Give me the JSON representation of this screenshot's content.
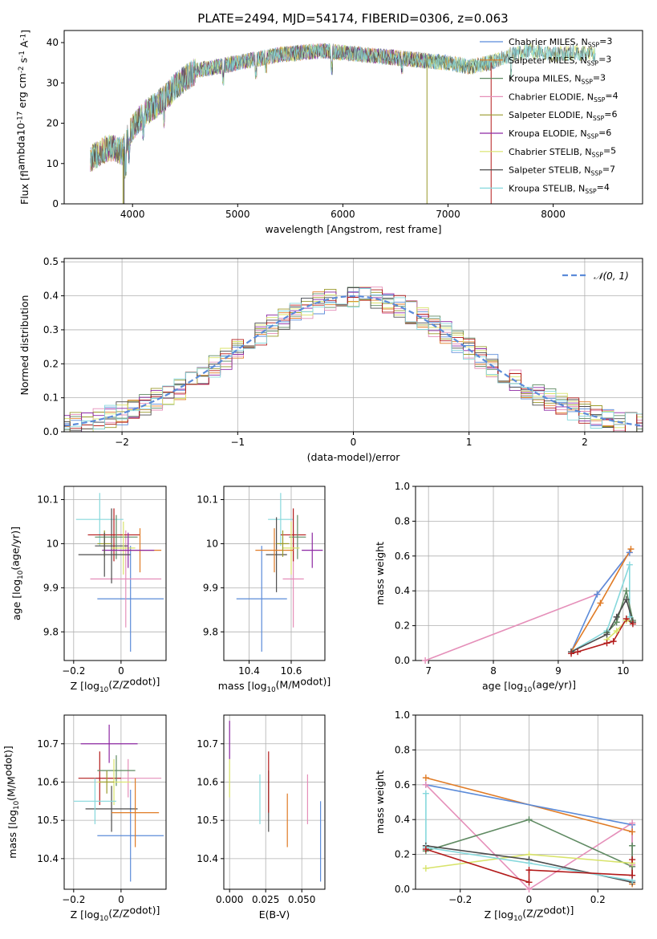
{
  "title": "PLATE=2494, MJD=54174, FIBERID=0306, z=0.063",
  "colors": {
    "blue": "#5b8bd9",
    "orange": "#e07b25",
    "green": "#5f8a62",
    "pink": "#e58fb9",
    "olive": "#9a9a2b",
    "purple": "#8d27a3",
    "yellow": "#d8e36a",
    "dark": "#4d4d4d",
    "red": "#b31b1b",
    "cyan": "#86d8dc"
  },
  "chart_data": [
    {
      "id": "spectrum",
      "type": "line",
      "xlabel": "wavelength [Angstrom, rest frame]",
      "ylabel": "Flux [f$_\\lambda$10$^{-17}$ erg cm$^{-2}$ s$^{-1}$ A$^{-1}$]",
      "xlim": [
        3350,
        8850
      ],
      "ylim": [
        0,
        43
      ],
      "xticks": [
        4000,
        5000,
        6000,
        7000,
        8000
      ],
      "yticks": [
        0,
        10,
        20,
        30,
        40
      ],
      "grid": false,
      "legend_position": "right",
      "continuum": {
        "x": [
          3600,
          3700,
          3800,
          3900,
          4000,
          4100,
          4200,
          4300,
          4400,
          4500,
          4600,
          4800,
          5000,
          5200,
          5400,
          5600,
          5800,
          6000,
          6200,
          6400,
          6600,
          6800,
          7000,
          7200,
          7400,
          7600,
          7800,
          8000,
          8200,
          8400
        ],
        "y": [
          11,
          13,
          14,
          13,
          19,
          22,
          24,
          26,
          29,
          31,
          33,
          34,
          35,
          36,
          37,
          37.5,
          38,
          37.5,
          37,
          36.5,
          36,
          35.5,
          35,
          34,
          35,
          37,
          38,
          37,
          37.5,
          37
        ]
      },
      "series": [
        {
          "name": "Chabrier MILES, N$_{SSP}$=3",
          "color": "blue",
          "xmax": 7450
        },
        {
          "name": "Salpeter MILES, N$_{SSP}$=3",
          "color": "orange",
          "xmax": 7450
        },
        {
          "name": "Kroupa MILES, N$_{SSP}$=3",
          "color": "green",
          "xmax": 7450
        },
        {
          "name": "Chabrier ELODIE, N$_{SSP}$=4",
          "color": "pink",
          "xmax": 6800
        },
        {
          "name": "Salpeter ELODIE, N$_{SSP}$=6",
          "color": "olive",
          "xmax": 6800
        },
        {
          "name": "Kroupa ELODIE, N$_{SSP}$=6",
          "color": "purple",
          "xmax": 6800
        },
        {
          "name": "Chabrier STELIB, N$_{SSP}$=5",
          "color": "yellow",
          "xmax": 8400
        },
        {
          "name": "Salpeter STELIB, N$_{SSP}$=7",
          "color": "dark",
          "xmax": 8400
        },
        {
          "name": "Kroupa STELIB, N$_{SSP}$=4",
          "color": "cyan",
          "xmax": 8400
        }
      ]
    },
    {
      "id": "residuals",
      "type": "line",
      "xlabel": "(data-model)/error",
      "ylabel": "Normed distribution",
      "xlim": [
        -2.5,
        2.5
      ],
      "ylim": [
        0,
        0.51
      ],
      "xticks": [
        -2,
        -1,
        0,
        1,
        2
      ],
      "yticks": [
        0.0,
        0.1,
        0.2,
        0.3,
        0.4,
        0.5
      ],
      "grid": true,
      "legend_position": "top-right",
      "legend_label": "$\\mathcal{N}(0,1)$",
      "bin_width": 0.1,
      "series": [
        {
          "color": "blue",
          "noise": 1
        },
        {
          "color": "orange",
          "noise": 2
        },
        {
          "color": "green",
          "noise": 3
        },
        {
          "color": "pink",
          "noise": 4
        },
        {
          "color": "olive",
          "noise": 5
        },
        {
          "color": "purple",
          "noise": 6
        },
        {
          "color": "yellow",
          "noise": 7
        },
        {
          "color": "dark",
          "noise": 8
        },
        {
          "color": "red",
          "noise": 9
        },
        {
          "color": "cyan",
          "noise": 10
        }
      ]
    },
    {
      "id": "age-vs-Z",
      "type": "scatter",
      "xlabel": "Z [log$_{10}$(Z/Z$_\\odot$)]",
      "ylabel": "age  [log$_{10}$(age/yr)]",
      "xlim": [
        -0.24,
        0.19
      ],
      "ylim": [
        9.735,
        10.13
      ],
      "xticks": [
        -0.2,
        0.0
      ],
      "yticks": [
        9.8,
        9.9,
        10.0,
        10.1
      ],
      "grid": true,
      "points": [
        {
          "color": "cyan",
          "x": -0.09,
          "xerr": 0.1,
          "y": 10.055,
          "yerr": 0.06
        },
        {
          "color": "blue",
          "x": 0.04,
          "xerr": 0.14,
          "y": 9.875,
          "yerr": 0.12
        },
        {
          "color": "pink",
          "x": 0.02,
          "xerr": 0.15,
          "y": 9.92,
          "yerr": 0.11
        },
        {
          "color": "dark",
          "x": -0.04,
          "xerr": 0.07,
          "y": 9.995,
          "yerr": 0.085
        },
        {
          "color": "red",
          "x": -0.03,
          "xerr": 0.11,
          "y": 10.02,
          "yerr": 0.06
        },
        {
          "color": "green",
          "x": -0.02,
          "xerr": 0.09,
          "y": 10.015,
          "yerr": 0.05
        },
        {
          "color": "yellow",
          "x": 0.01,
          "xerr": 0.05,
          "y": 9.99,
          "yerr": 0.06
        },
        {
          "color": "orange",
          "x": 0.08,
          "xerr": 0.09,
          "y": 9.985,
          "yerr": 0.05
        },
        {
          "color": "purple",
          "x": 0.03,
          "xerr": 0.11,
          "y": 9.985,
          "yerr": 0.04
        },
        {
          "color": "olive",
          "x": -0.07,
          "xerr": 0.03,
          "y": 10.0,
          "yerr": 0.03
        },
        {
          "color": "dark",
          "x": -0.07,
          "xerr": 0.11,
          "y": 9.975,
          "yerr": 0.05
        }
      ]
    },
    {
      "id": "age-vs-mass",
      "type": "scatter",
      "xlabel": "mass [log$_{10}$(M/M$_\\odot$)]",
      "ylabel": "",
      "xlim": [
        10.28,
        10.76
      ],
      "ylim": [
        9.735,
        10.13
      ],
      "xticks": [
        10.4,
        10.6
      ],
      "yticks": [
        9.8,
        9.9,
        10.0,
        10.1
      ],
      "grid": true,
      "points": [
        {
          "color": "cyan",
          "x": 10.55,
          "xerr": 0.06,
          "y": 10.055,
          "yerr": 0.06
        },
        {
          "color": "blue",
          "x": 10.46,
          "xerr": 0.12,
          "y": 9.875,
          "yerr": 0.12
        },
        {
          "color": "pink",
          "x": 10.61,
          "xerr": 0.05,
          "y": 9.92,
          "yerr": 0.11
        },
        {
          "color": "dark",
          "x": 10.53,
          "xerr": 0.05,
          "y": 9.975,
          "yerr": 0.085
        },
        {
          "color": "red",
          "x": 10.61,
          "xerr": 0.06,
          "y": 10.02,
          "yerr": 0.06
        },
        {
          "color": "green",
          "x": 10.63,
          "xerr": 0.04,
          "y": 10.015,
          "yerr": 0.05
        },
        {
          "color": "yellow",
          "x": 10.6,
          "xerr": 0.04,
          "y": 9.99,
          "yerr": 0.06
        },
        {
          "color": "orange",
          "x": 10.52,
          "xerr": 0.09,
          "y": 9.985,
          "yerr": 0.05
        },
        {
          "color": "purple",
          "x": 10.7,
          "xerr": 0.05,
          "y": 9.985,
          "yerr": 0.04
        },
        {
          "color": "olive",
          "x": 10.56,
          "xerr": 0.03,
          "y": 10.0,
          "yerr": 0.03
        }
      ]
    },
    {
      "id": "weight-vs-age",
      "type": "line",
      "xlabel": "age  [log$_{10}$(age/yr)]",
      "ylabel": "mass weight",
      "xlim": [
        6.8,
        10.3
      ],
      "ylim": [
        0,
        1.0
      ],
      "xticks": [
        7,
        8,
        9,
        10
      ],
      "yticks": [
        0.0,
        0.2,
        0.4,
        0.6,
        0.8,
        1.0
      ],
      "grid": true,
      "series": [
        {
          "color": "pink",
          "x": [
            6.95,
            9.6,
            10.1
          ],
          "y": [
            0.0,
            0.38,
            0.62
          ]
        },
        {
          "color": "blue",
          "x": [
            9.2,
            9.6,
            10.1
          ],
          "y": [
            0.05,
            0.38,
            0.62
          ]
        },
        {
          "color": "orange",
          "x": [
            9.2,
            9.65,
            10.12
          ],
          "y": [
            0.05,
            0.33,
            0.64
          ]
        },
        {
          "color": "cyan",
          "x": [
            9.2,
            9.75,
            10.1,
            10.1
          ],
          "y": [
            0.05,
            0.17,
            0.55,
            0.25
          ]
        },
        {
          "color": "yellow",
          "x": [
            9.75,
            9.9,
            10.05,
            10.15
          ],
          "y": [
            0.12,
            0.17,
            0.23,
            0.22
          ]
        },
        {
          "color": "green",
          "x": [
            9.75,
            9.9,
            10.05,
            10.15
          ],
          "y": [
            0.16,
            0.22,
            0.4,
            0.23
          ]
        },
        {
          "color": "dark",
          "x": [
            9.2,
            9.75,
            9.9,
            10.05,
            10.15
          ],
          "y": [
            0.05,
            0.15,
            0.25,
            0.35,
            0.22
          ]
        },
        {
          "color": "red",
          "x": [
            9.2,
            9.3,
            9.75,
            9.85,
            10.05,
            10.15
          ],
          "y": [
            0.04,
            0.05,
            0.1,
            0.11,
            0.24,
            0.21
          ]
        }
      ]
    },
    {
      "id": "mass-vs-Z",
      "type": "scatter",
      "xlabel": "Z [log$_{10}$(Z/Z$_\\odot$)]",
      "ylabel": "mass [log$_{10}$(M/M$_\\odot$)]",
      "xlim": [
        -0.24,
        0.19
      ],
      "ylim": [
        10.32,
        10.775
      ],
      "xticks": [
        -0.2,
        0.0
      ],
      "yticks": [
        10.4,
        10.5,
        10.6,
        10.7
      ],
      "grid": true,
      "points": [
        {
          "color": "purple",
          "x": -0.05,
          "xerr": 0.12,
          "y": 10.7,
          "yerr": 0.05
        },
        {
          "color": "blue",
          "x": 0.04,
          "xerr": 0.14,
          "y": 10.46,
          "yerr": 0.12
        },
        {
          "color": "pink",
          "x": 0.03,
          "xerr": 0.14,
          "y": 10.61,
          "yerr": 0.05
        },
        {
          "color": "dark",
          "x": -0.04,
          "xerr": 0.11,
          "y": 10.53,
          "yerr": 0.06
        },
        {
          "color": "red",
          "x": -0.09,
          "xerr": 0.09,
          "y": 10.61,
          "yerr": 0.07
        },
        {
          "color": "green",
          "x": -0.02,
          "xerr": 0.08,
          "y": 10.63,
          "yerr": 0.04
        },
        {
          "color": "yellow",
          "x": -0.03,
          "xerr": 0.07,
          "y": 10.6,
          "yerr": 0.06
        },
        {
          "color": "orange",
          "x": 0.06,
          "xerr": 0.1,
          "y": 10.52,
          "yerr": 0.09
        },
        {
          "color": "cyan",
          "x": -0.11,
          "xerr": 0.09,
          "y": 10.55,
          "yerr": 0.06
        },
        {
          "color": "olive",
          "x": -0.06,
          "xerr": 0.03,
          "y": 10.6,
          "yerr": 0.03
        }
      ]
    },
    {
      "id": "mass-vs-EBV",
      "type": "scatter",
      "xlabel": "E(B-V)",
      "ylabel": "",
      "xlim": [
        -0.004,
        0.066
      ],
      "ylim": [
        10.32,
        10.775
      ],
      "xticks": [
        0.0,
        0.025,
        0.05
      ],
      "xticklabels": [
        "0.000",
        "0.025",
        "0.050"
      ],
      "yticks": [
        10.4,
        10.5,
        10.6,
        10.7
      ],
      "grid": true,
      "points": [
        {
          "color": "purple",
          "x": 0.0,
          "y": 10.71,
          "yerr": 0.05
        },
        {
          "color": "yellow",
          "x": 0.0,
          "y": 10.61,
          "yerr": 0.05
        },
        {
          "color": "cyan",
          "x": 0.021,
          "y": 10.555,
          "yerr": 0.065
        },
        {
          "color": "dark",
          "x": 0.027,
          "y": 10.55,
          "yerr": 0.08
        },
        {
          "color": "red",
          "x": 0.027,
          "y": 10.6,
          "yerr": 0.08
        },
        {
          "color": "orange",
          "x": 0.04,
          "y": 10.5,
          "yerr": 0.07
        },
        {
          "color": "pink",
          "x": 0.054,
          "y": 10.555,
          "yerr": 0.065
        },
        {
          "color": "blue",
          "x": 0.063,
          "y": 10.445,
          "yerr": 0.105
        }
      ]
    },
    {
      "id": "weight-vs-Z",
      "type": "line",
      "xlabel": "Z [log$_{10}$(Z/Z$_\\odot$)]",
      "ylabel": "mass weight",
      "xlim": [
        -0.33,
        0.33
      ],
      "ylim": [
        0,
        1.0
      ],
      "xticks": [
        -0.2,
        0.0,
        0.2
      ],
      "yticks": [
        0.0,
        0.2,
        0.4,
        0.6,
        0.8,
        1.0
      ],
      "grid": true,
      "series": [
        {
          "color": "orange",
          "x": [
            -0.3,
            0.3,
            0.3
          ],
          "y": [
            0.64,
            0.33,
            0.03
          ]
        },
        {
          "color": "blue",
          "x": [
            -0.3,
            0.3,
            0.3
          ],
          "y": [
            0.6,
            0.37,
            0.05
          ]
        },
        {
          "color": "pink",
          "x": [
            -0.3,
            0.0,
            0.3,
            0.3
          ],
          "y": [
            0.6,
            0.0,
            0.38,
            0.14
          ]
        },
        {
          "color": "green",
          "x": [
            -0.3,
            0.0,
            0.3,
            0.3
          ],
          "y": [
            0.22,
            0.4,
            0.13,
            0.25
          ]
        },
        {
          "color": "yellow",
          "x": [
            -0.3,
            0.0,
            0.3
          ],
          "y": [
            0.12,
            0.2,
            0.15
          ]
        },
        {
          "color": "dark",
          "x": [
            -0.3,
            0.0,
            0.3
          ],
          "y": [
            0.25,
            0.17,
            0.04
          ]
        },
        {
          "color": "cyan",
          "x": [
            -0.3,
            -0.3,
            0.0,
            0.3
          ],
          "y": [
            0.55,
            0.24,
            0.15,
            0.05
          ]
        },
        {
          "color": "red",
          "x": [
            -0.3,
            0.0,
            0.0,
            0.3,
            0.3
          ],
          "y": [
            0.23,
            0.04,
            0.11,
            0.08,
            0.17
          ]
        }
      ]
    }
  ]
}
